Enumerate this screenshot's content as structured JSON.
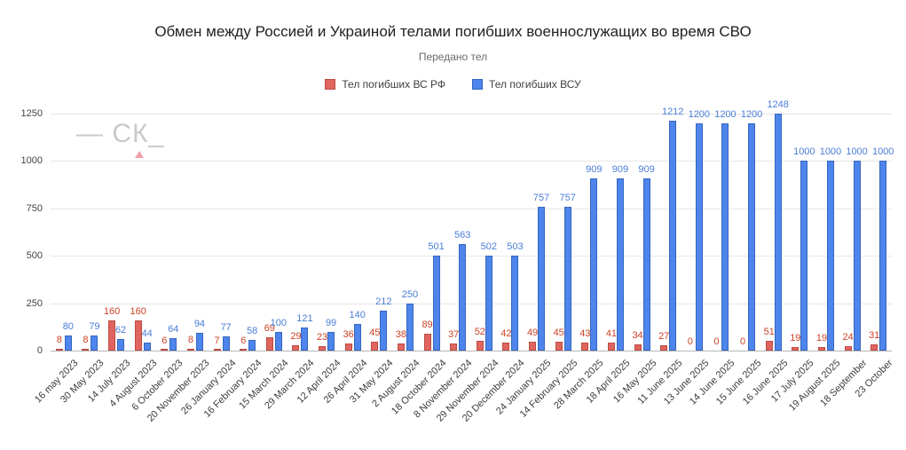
{
  "watermark": {
    "text": "— СК_"
  },
  "chart_data": {
    "type": "bar",
    "title": "Обмен между Россией и Украиной телами погибших военнослужащих во время СВО",
    "subtitle": "Передано тел",
    "legend_position": "top",
    "grid": true,
    "ylim": [
      0,
      1250
    ],
    "y_ticks": [
      0,
      250,
      500,
      750,
      1000,
      1250
    ],
    "categories": [
      "16 may 2023",
      "30 May 2023",
      "14 July 2023",
      "4 August 2023",
      "6 October 2023",
      "20 November 2023",
      "26 January 2024",
      "16 February 2024",
      "15 March 2024",
      "29 March 2024",
      "12 April 2024",
      "26 April 2024",
      "31 May 2024",
      "2 August 2024",
      "18 October 2024",
      "8 November 2024",
      "29 November 2024",
      "20 December 2024",
      "24 January 2025",
      "14 February 2025",
      "28 March 2025",
      "18 April 2025",
      "16 May 2025",
      "11 June 2025",
      "13 June 2025",
      "14 June 2025",
      "15 June 2025",
      "16 June 2025",
      "17 July 2025",
      "19 August 2025",
      "18 September",
      "23 October"
    ],
    "series": [
      {
        "name": "Тел погибших ВС  РФ",
        "color": "#e0655f",
        "border": "#bc4b45",
        "label_color": "#cc4125",
        "values": [
          8,
          8,
          160,
          160,
          6,
          8,
          7,
          6,
          69,
          29,
          23,
          36,
          45,
          38,
          89,
          37,
          52,
          42,
          49,
          45,
          43,
          41,
          34,
          27,
          0,
          0,
          0,
          51,
          19,
          19,
          24,
          31
        ]
      },
      {
        "name": "Тел погибших ВСУ",
        "color": "#4e85ec",
        "border": "#3666bf",
        "label_color": "#4a7dd6",
        "values": [
          80,
          79,
          62,
          44,
          64,
          94,
          77,
          58,
          100,
          121,
          99,
          140,
          212,
          250,
          501,
          563,
          502,
          503,
          757,
          757,
          909,
          909,
          909,
          1212,
          1200,
          1200,
          1200,
          1248,
          1000,
          1000,
          1000,
          1000
        ]
      }
    ]
  }
}
